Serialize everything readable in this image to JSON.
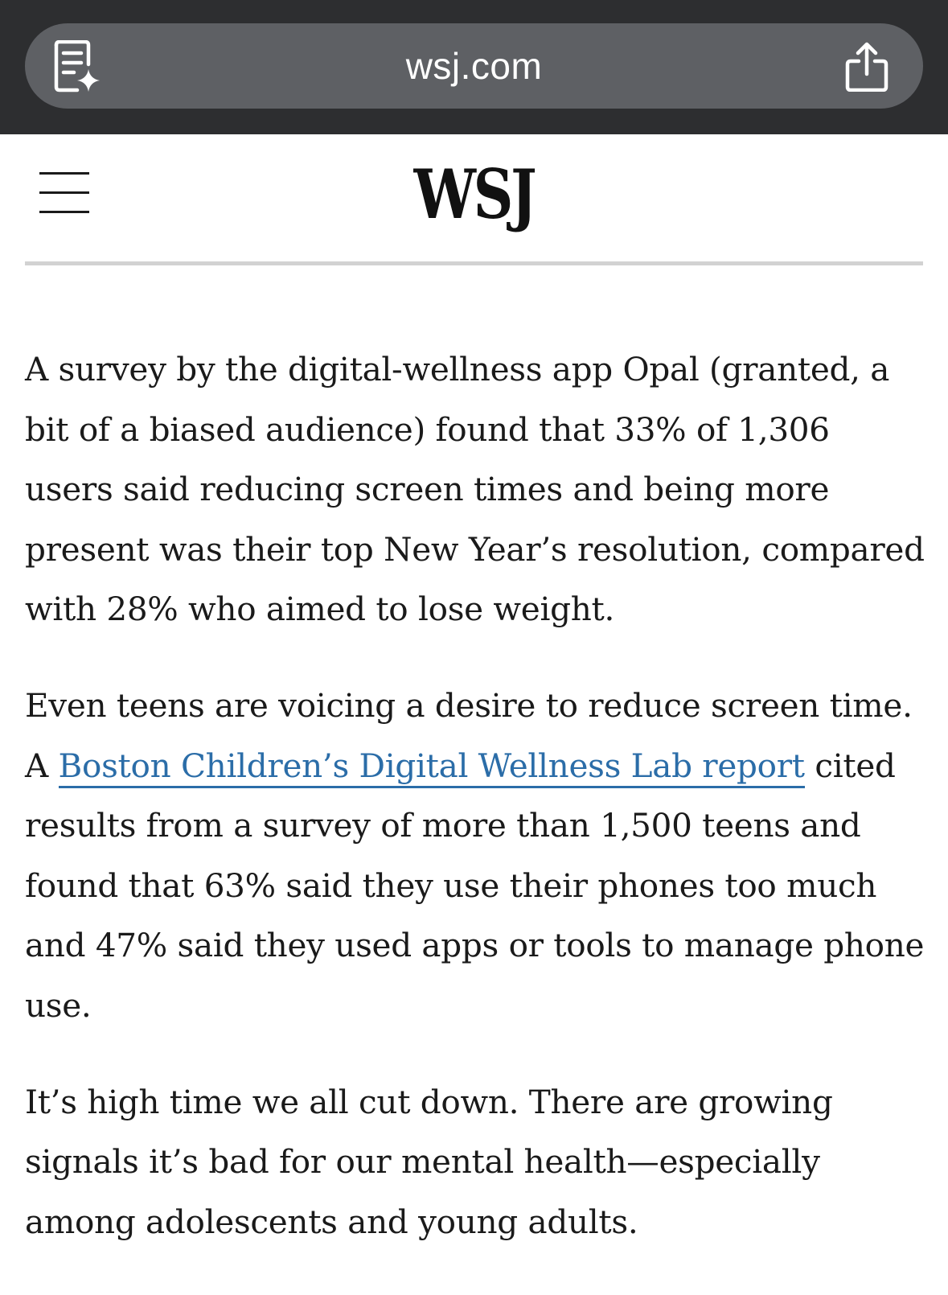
{
  "browser": {
    "url": "wsj.com",
    "reader_icon": "reader-summary-icon",
    "share_icon": "share-icon"
  },
  "header": {
    "menu_icon": "hamburger-menu-icon",
    "logo": "WSJ"
  },
  "article": {
    "p1": "A survey by the digital-wellness app Opal (granted, a bit of a biased audience) found that 33% of 1,306 users said reducing screen times and being more present was their top New Year’s resolution, compared with 28% who aimed to lose weight.",
    "p2_before": "Even teens are voicing a desire to reduce screen time. A ",
    "p2_link": "Boston Children’s Digital Wellness Lab report",
    "p2_after": " cited results from a survey of more than 1,500 teens and found that 63% said they use their phones too much and 47% said they used apps or tools to manage phone use.",
    "p3": "It’s high time we all cut down. There are growing signals it’s bad for our mental health—especially among adolescents and young adults."
  },
  "colors": {
    "browser_bar": "#2d2e30",
    "url_pill": "#5e6064",
    "link": "#2b6da8",
    "text": "#1a1a1a"
  }
}
